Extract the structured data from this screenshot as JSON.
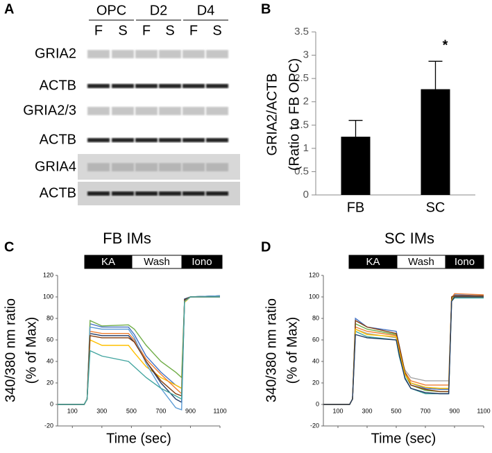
{
  "panels": [
    "A",
    "B",
    "C",
    "D"
  ],
  "blot": {
    "groups": [
      "OPC",
      "D2",
      "D4"
    ],
    "lanes": [
      "F",
      "S",
      "F",
      "S",
      "F",
      "S"
    ],
    "rows": [
      "GRIA2",
      "ACTB",
      "GRIA2/3",
      "ACTB",
      "GRIA4",
      "ACTB"
    ]
  },
  "chart_data": [
    {
      "type": "bar",
      "ylabel": [
        "GRIA2/ACTB",
        "(Ratio to FB OPC)"
      ],
      "categories": [
        "FB",
        "SC"
      ],
      "values": [
        1.25,
        2.27
      ],
      "errors": [
        0.35,
        0.6
      ],
      "color": "#000000",
      "annotation": "*",
      "ylim": [
        0,
        3.5
      ],
      "yticks": [
        0,
        0.5,
        1,
        1.5,
        2,
        2.5,
        3,
        3.5
      ]
    },
    {
      "type": "line",
      "title": "FB IMs",
      "ylabel": [
        "340/380 nm ratio",
        "(% of Max)"
      ],
      "xlabel": "Time  (sec)",
      "phases": [
        "KA",
        "Wash",
        "Iono"
      ],
      "x": [
        0,
        180,
        200,
        220,
        300,
        480,
        520,
        600,
        700,
        800,
        840,
        860,
        900,
        1100
      ],
      "series": [
        {
          "color": "#4472c4",
          "values": [
            0,
            0,
            5,
            75,
            72,
            72,
            65,
            45,
            30,
            18,
            15,
            98,
            100,
            101
          ]
        },
        {
          "color": "#70ad47",
          "values": [
            0,
            0,
            5,
            78,
            73,
            74,
            70,
            55,
            40,
            30,
            25,
            97,
            100,
            101
          ]
        },
        {
          "color": "#ffc000",
          "values": [
            0,
            0,
            5,
            60,
            55,
            55,
            48,
            35,
            25,
            18,
            15,
            95,
            100,
            100
          ]
        },
        {
          "color": "#1f3864",
          "values": [
            0,
            0,
            5,
            66,
            64,
            64,
            58,
            40,
            20,
            5,
            2,
            98,
            100,
            101
          ]
        },
        {
          "color": "#ed7d31",
          "values": [
            0,
            0,
            5,
            68,
            66,
            66,
            60,
            42,
            28,
            15,
            10,
            97,
            100,
            100
          ]
        },
        {
          "color": "#5b9bd5",
          "values": [
            0,
            0,
            5,
            72,
            70,
            70,
            62,
            38,
            15,
            -3,
            -5,
            96,
            100,
            101
          ]
        },
        {
          "color": "#843c0c",
          "values": [
            0,
            0,
            5,
            64,
            62,
            62,
            58,
            40,
            22,
            10,
            8,
            97,
            100,
            100
          ]
        },
        {
          "color": "#43a5a0",
          "values": [
            0,
            0,
            5,
            50,
            45,
            40,
            35,
            25,
            15,
            8,
            5,
            96,
            100,
            100
          ]
        }
      ],
      "xlim": [
        0,
        1100
      ],
      "xticks": [
        100,
        300,
        500,
        700,
        900,
        1100
      ],
      "ylim": [
        -20,
        120
      ],
      "yticks": [
        -20,
        0,
        20,
        40,
        60,
        80,
        100,
        120
      ]
    },
    {
      "type": "line",
      "title": "SC IMs",
      "ylabel": [
        "340/380 nm ratio",
        "(% of Max)"
      ],
      "xlabel": "Time  (sec)",
      "phases": [
        "KA",
        "Wash",
        "Iono"
      ],
      "x": [
        0,
        180,
        200,
        220,
        300,
        500,
        520,
        560,
        600,
        700,
        800,
        860,
        880,
        900,
        1100
      ],
      "series": [
        {
          "color": "#4472c4",
          "values": [
            0,
            0,
            5,
            80,
            72,
            68,
            55,
            30,
            20,
            15,
            14,
            14,
            100,
            102,
            101
          ]
        },
        {
          "color": "#70ad47",
          "values": [
            0,
            0,
            5,
            75,
            70,
            65,
            50,
            28,
            18,
            13,
            12,
            12,
            98,
            101,
            100
          ]
        },
        {
          "color": "#a5a5a5",
          "values": [
            0,
            0,
            5,
            70,
            66,
            62,
            48,
            32,
            25,
            22,
            22,
            22,
            97,
            100,
            100
          ]
        },
        {
          "color": "#43a5a0",
          "values": [
            0,
            0,
            5,
            68,
            63,
            60,
            45,
            25,
            15,
            10,
            10,
            10,
            96,
            99,
            99
          ]
        },
        {
          "color": "#ed7d31",
          "values": [
            0,
            0,
            5,
            72,
            68,
            64,
            52,
            30,
            22,
            18,
            18,
            18,
            99,
            103,
            102
          ]
        },
        {
          "color": "#843c0c",
          "values": [
            0,
            0,
            5,
            78,
            72,
            66,
            55,
            30,
            18,
            14,
            12,
            12,
            100,
            101,
            101
          ]
        },
        {
          "color": "#ffc000",
          "values": [
            0,
            0,
            5,
            70,
            65,
            63,
            50,
            28,
            20,
            16,
            15,
            15,
            97,
            100,
            100
          ]
        },
        {
          "color": "#1f3864",
          "values": [
            0,
            0,
            5,
            65,
            62,
            60,
            47,
            24,
            15,
            11,
            10,
            10,
            96,
            100,
            100
          ]
        }
      ],
      "xlim": [
        0,
        1100
      ],
      "xticks": [
        100,
        300,
        500,
        700,
        900,
        1100
      ],
      "ylim": [
        -20,
        120
      ],
      "yticks": [
        -20,
        0,
        20,
        40,
        60,
        80,
        100,
        120
      ]
    }
  ]
}
